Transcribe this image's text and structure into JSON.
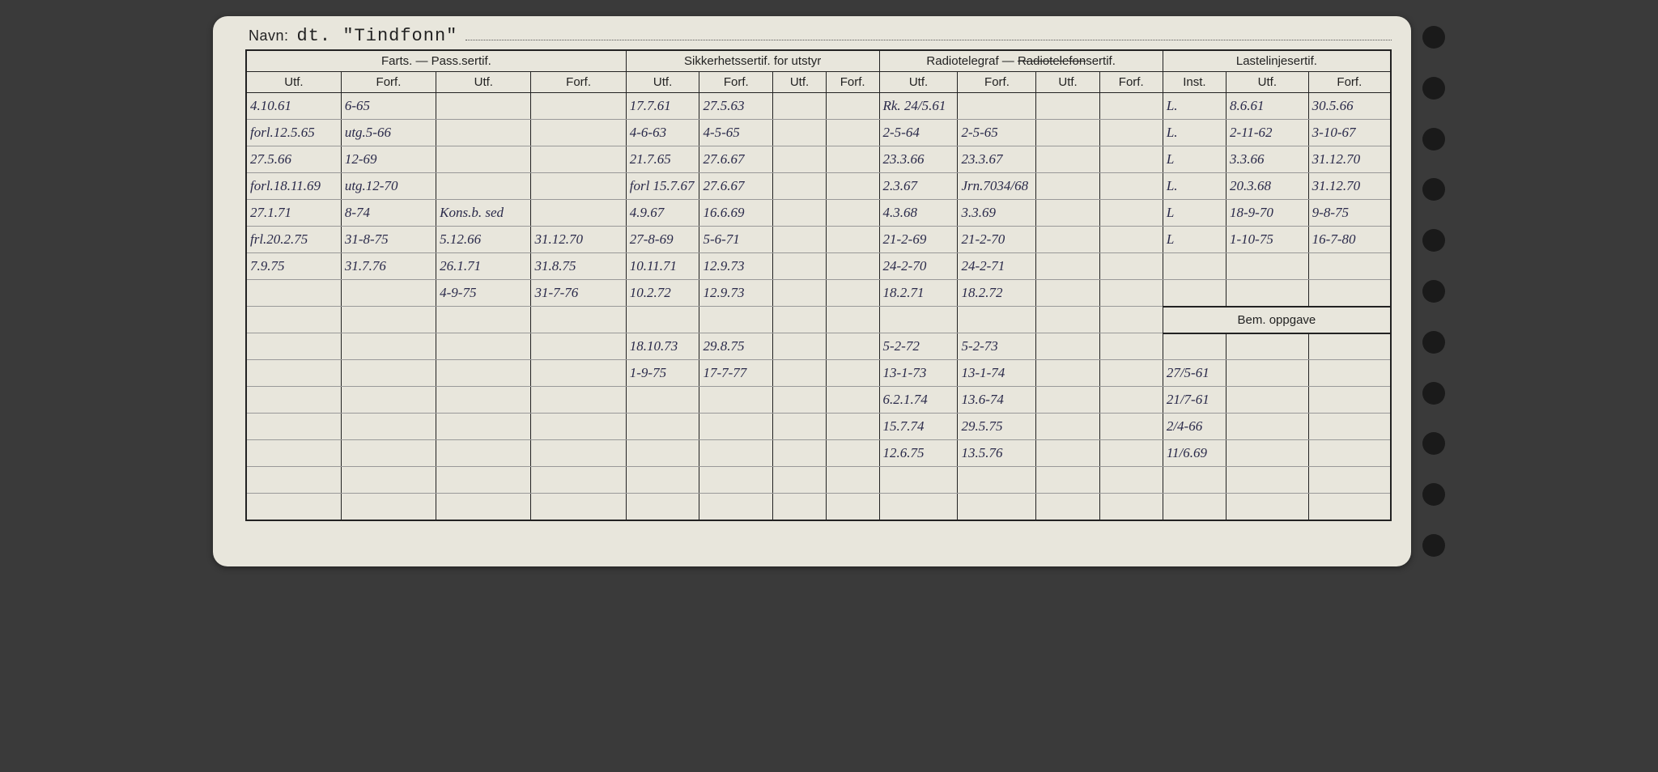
{
  "name_label": "Navn:",
  "name_value": "dt. \"Tindfonn\"",
  "groups": {
    "g1": "Farts. — Pass.sertif.",
    "g2": "Sikkerhetssertif. for utstyr",
    "g3_a": "Radiotelegraf — ",
    "g3_strike": "Radiotelefon",
    "g3_b": "sertif.",
    "g4": "Lastelinjesertif."
  },
  "sub": {
    "utf": "Utf.",
    "forf": "Forf.",
    "inst": "Inst."
  },
  "bem_label": "Bem. oppgave",
  "rows": [
    [
      "4.10.61",
      "6-65",
      "",
      "",
      "17.7.61",
      "27.5.63",
      "",
      "",
      "Rk. 24/5.61",
      "",
      "",
      "",
      "L.",
      "8.6.61",
      "30.5.66"
    ],
    [
      "forl.12.5.65",
      "utg.5-66",
      "",
      "",
      "4-6-63",
      "4-5-65",
      "",
      "",
      "2-5-64",
      "2-5-65",
      "",
      "",
      "L.",
      "2-11-62",
      "3-10-67"
    ],
    [
      "27.5.66",
      "12-69",
      "",
      "",
      "21.7.65",
      "27.6.67",
      "",
      "",
      "23.3.66",
      "23.3.67",
      "",
      "",
      "L",
      "3.3.66",
      "31.12.70"
    ],
    [
      "forl.18.11.69",
      "utg.12-70",
      "",
      "",
      "forl 15.7.67",
      "27.6.67",
      "",
      "",
      "2.3.67",
      "Jrn.7034/68",
      "",
      "",
      "L.",
      "20.3.68",
      "31.12.70"
    ],
    [
      "27.1.71",
      "8-74",
      "Kons.b. sed",
      "",
      "4.9.67",
      "16.6.69",
      "",
      "",
      "4.3.68",
      "3.3.69",
      "",
      "",
      "L",
      "18-9-70",
      "9-8-75"
    ],
    [
      "frl.20.2.75",
      "31-8-75",
      "5.12.66",
      "31.12.70",
      "27-8-69",
      "5-6-71",
      "",
      "",
      "21-2-69",
      "21-2-70",
      "",
      "",
      "L",
      "1-10-75",
      "16-7-80"
    ],
    [
      "7.9.75",
      "31.7.76",
      "26.1.71",
      "31.8.75",
      "10.11.71",
      "12.9.73",
      "",
      "",
      "24-2-70",
      "24-2-71",
      "",
      "",
      "",
      "",
      ""
    ],
    [
      "",
      "",
      "4-9-75",
      "31-7-76",
      "10.2.72",
      "12.9.73",
      "",
      "",
      "18.2.71",
      "18.2.72",
      "",
      "",
      "",
      "",
      ""
    ]
  ],
  "rows_after_bem": [
    [
      "",
      "",
      "",
      "",
      "18.10.73",
      "29.8.75",
      "",
      "",
      "5-2-72",
      "5-2-73",
      "",
      "",
      "",
      "",
      ""
    ],
    [
      "",
      "",
      "",
      "",
      "1-9-75",
      "17-7-77",
      "",
      "",
      "13-1-73",
      "13-1-74",
      "",
      "",
      "27/5-61",
      "",
      ""
    ],
    [
      "",
      "",
      "",
      "",
      "",
      "",
      "",
      "",
      "6.2.1.74",
      "13.6-74",
      "",
      "",
      "21/7-61",
      "",
      ""
    ],
    [
      "",
      "",
      "",
      "",
      "",
      "",
      "",
      "",
      "15.7.74",
      "29.5.75",
      "",
      "",
      "2/4-66",
      "",
      ""
    ],
    [
      "",
      "",
      "",
      "",
      "",
      "",
      "",
      "",
      "12.6.75",
      "13.5.76",
      "",
      "",
      "11/6.69",
      "",
      ""
    ],
    [
      "",
      "",
      "",
      "",
      "",
      "",
      "",
      "",
      "",
      "",
      "",
      "",
      "",
      "",
      ""
    ],
    [
      "",
      "",
      "",
      "",
      "",
      "",
      "",
      "",
      "",
      "",
      "",
      "",
      "",
      "",
      ""
    ]
  ]
}
